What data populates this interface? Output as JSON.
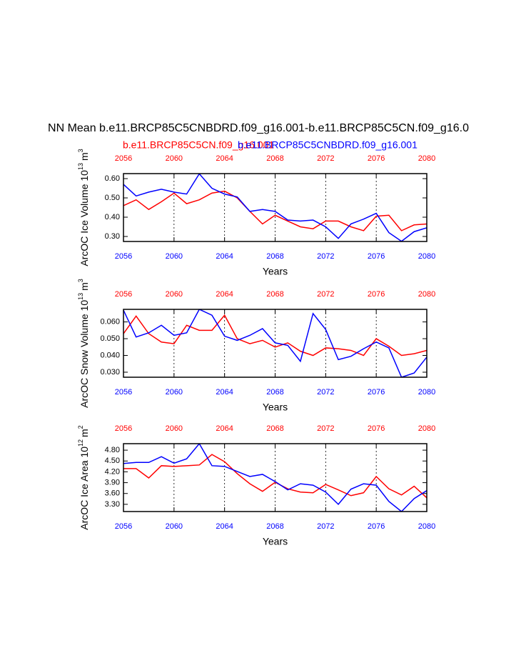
{
  "chart_data": [
    {
      "type": "line",
      "title": "NN Mean b.e11.BRCP85C5CNBDRD.f09_g16.001-b.e11.BRCP85C5CN.f09_g16.0",
      "xlabel": "Years",
      "ylabel": [
        "ArcOC Ice Volume 10",
        "13",
        "m",
        "3"
      ],
      "x": [
        2056,
        2057,
        2058,
        2059,
        2060,
        2061,
        2062,
        2063,
        2064,
        2065,
        2066,
        2067,
        2068,
        2069,
        2070,
        2071,
        2072,
        2073,
        2074,
        2075,
        2076,
        2077,
        2078,
        2079,
        2080
      ],
      "xlim": [
        2056,
        2080
      ],
      "xticks": [
        2056,
        2060,
        2064,
        2068,
        2072,
        2076,
        2080
      ],
      "ylim": [
        0.274,
        0.626
      ],
      "yticks": [
        {
          "value": 0.3,
          "label": "0.30"
        },
        {
          "value": 0.4,
          "label": "0.40"
        },
        {
          "value": 0.5,
          "label": "0.50"
        },
        {
          "value": 0.6,
          "label": "0.60"
        }
      ],
      "grid": true,
      "series": [
        {
          "name": "b.e11.BRCP85C5CN.f09_g16.001",
          "color": "#ff0000",
          "values": [
            0.46,
            0.49,
            0.44,
            0.48,
            0.525,
            0.47,
            0.49,
            0.525,
            0.535,
            0.5,
            0.43,
            0.365,
            0.41,
            0.38,
            0.35,
            0.34,
            0.38,
            0.38,
            0.35,
            0.33,
            0.405,
            0.41,
            0.33,
            0.36,
            0.365
          ]
        },
        {
          "name": "b.e11.BRCP85C5CNBDRD.f09_g16.001",
          "color": "#0000ff",
          "values": [
            0.57,
            0.51,
            0.53,
            0.545,
            0.53,
            0.52,
            0.625,
            0.55,
            0.52,
            0.505,
            0.43,
            0.44,
            0.43,
            0.385,
            0.38,
            0.385,
            0.35,
            0.29,
            0.365,
            0.39,
            0.42,
            0.32,
            0.275,
            0.325,
            0.345
          ]
        }
      ]
    },
    {
      "type": "line",
      "xlabel": "Years",
      "ylabel": [
        "ArcOC Snow Volume 10",
        "13",
        "m",
        "3"
      ],
      "x": [
        2056,
        2057,
        2058,
        2059,
        2060,
        2061,
        2062,
        2063,
        2064,
        2065,
        2066,
        2067,
        2068,
        2069,
        2070,
        2071,
        2072,
        2073,
        2074,
        2075,
        2076,
        2077,
        2078,
        2079,
        2080
      ],
      "xlim": [
        2056,
        2080
      ],
      "xticks": [
        2056,
        2060,
        2064,
        2068,
        2072,
        2076,
        2080
      ],
      "ylim": [
        0.027,
        0.0675
      ],
      "yticks": [
        {
          "value": 0.03,
          "label": "0.030"
        },
        {
          "value": 0.04,
          "label": "0.040"
        },
        {
          "value": 0.05,
          "label": "0.050"
        },
        {
          "value": 0.06,
          "label": "0.060"
        }
      ],
      "grid": true,
      "series": [
        {
          "color": "#ff0000",
          "values": [
            0.053,
            0.0635,
            0.053,
            0.048,
            0.047,
            0.058,
            0.055,
            0.055,
            0.064,
            0.05,
            0.047,
            0.049,
            0.045,
            0.0475,
            0.0425,
            0.04,
            0.0445,
            0.044,
            0.043,
            0.04,
            0.05,
            0.0455,
            0.04,
            0.041,
            0.043
          ]
        },
        {
          "color": "#0000ff",
          "values": [
            0.067,
            0.051,
            0.0535,
            0.058,
            0.052,
            0.0535,
            0.0675,
            0.064,
            0.0515,
            0.049,
            0.052,
            0.056,
            0.0475,
            0.046,
            0.0365,
            0.065,
            0.0555,
            0.0375,
            0.0395,
            0.044,
            0.048,
            0.0445,
            0.027,
            0.0295,
            0.039
          ]
        }
      ]
    },
    {
      "type": "line",
      "xlabel": "Years",
      "ylabel": [
        "ArcOC Ice Area 10",
        "12",
        "m",
        "2"
      ],
      "x": [
        2056,
        2057,
        2058,
        2059,
        2060,
        2061,
        2062,
        2063,
        2064,
        2065,
        2066,
        2067,
        2068,
        2069,
        2070,
        2071,
        2072,
        2073,
        2074,
        2075,
        2076,
        2077,
        2078,
        2079,
        2080
      ],
      "xlim": [
        2056,
        2080
      ],
      "xticks": [
        2056,
        2060,
        2064,
        2068,
        2072,
        2076,
        2080
      ],
      "ylim": [
        3.1,
        4.98
      ],
      "yticks": [
        {
          "value": 3.3,
          "label": "3.30"
        },
        {
          "value": 3.6,
          "label": "3.60"
        },
        {
          "value": 3.9,
          "label": "3.90"
        },
        {
          "value": 4.2,
          "label": "4.20"
        },
        {
          "value": 4.5,
          "label": "4.50"
        },
        {
          "value": 4.8,
          "label": "4.80"
        }
      ],
      "grid": true,
      "series": [
        {
          "color": "#ff0000",
          "values": [
            4.29,
            4.29,
            4.03,
            4.37,
            4.35,
            4.37,
            4.39,
            4.68,
            4.48,
            4.15,
            3.87,
            3.66,
            3.91,
            3.73,
            3.64,
            3.62,
            3.85,
            3.7,
            3.54,
            3.62,
            4.07,
            3.73,
            3.56,
            3.8,
            3.48
          ]
        },
        {
          "color": "#0000ff",
          "values": [
            4.43,
            4.46,
            4.46,
            4.62,
            4.44,
            4.56,
            4.98,
            4.37,
            4.35,
            4.21,
            4.07,
            4.13,
            3.93,
            3.7,
            3.87,
            3.83,
            3.64,
            3.3,
            3.72,
            3.87,
            3.83,
            3.38,
            3.1,
            3.46,
            3.68
          ]
        }
      ]
    }
  ]
}
